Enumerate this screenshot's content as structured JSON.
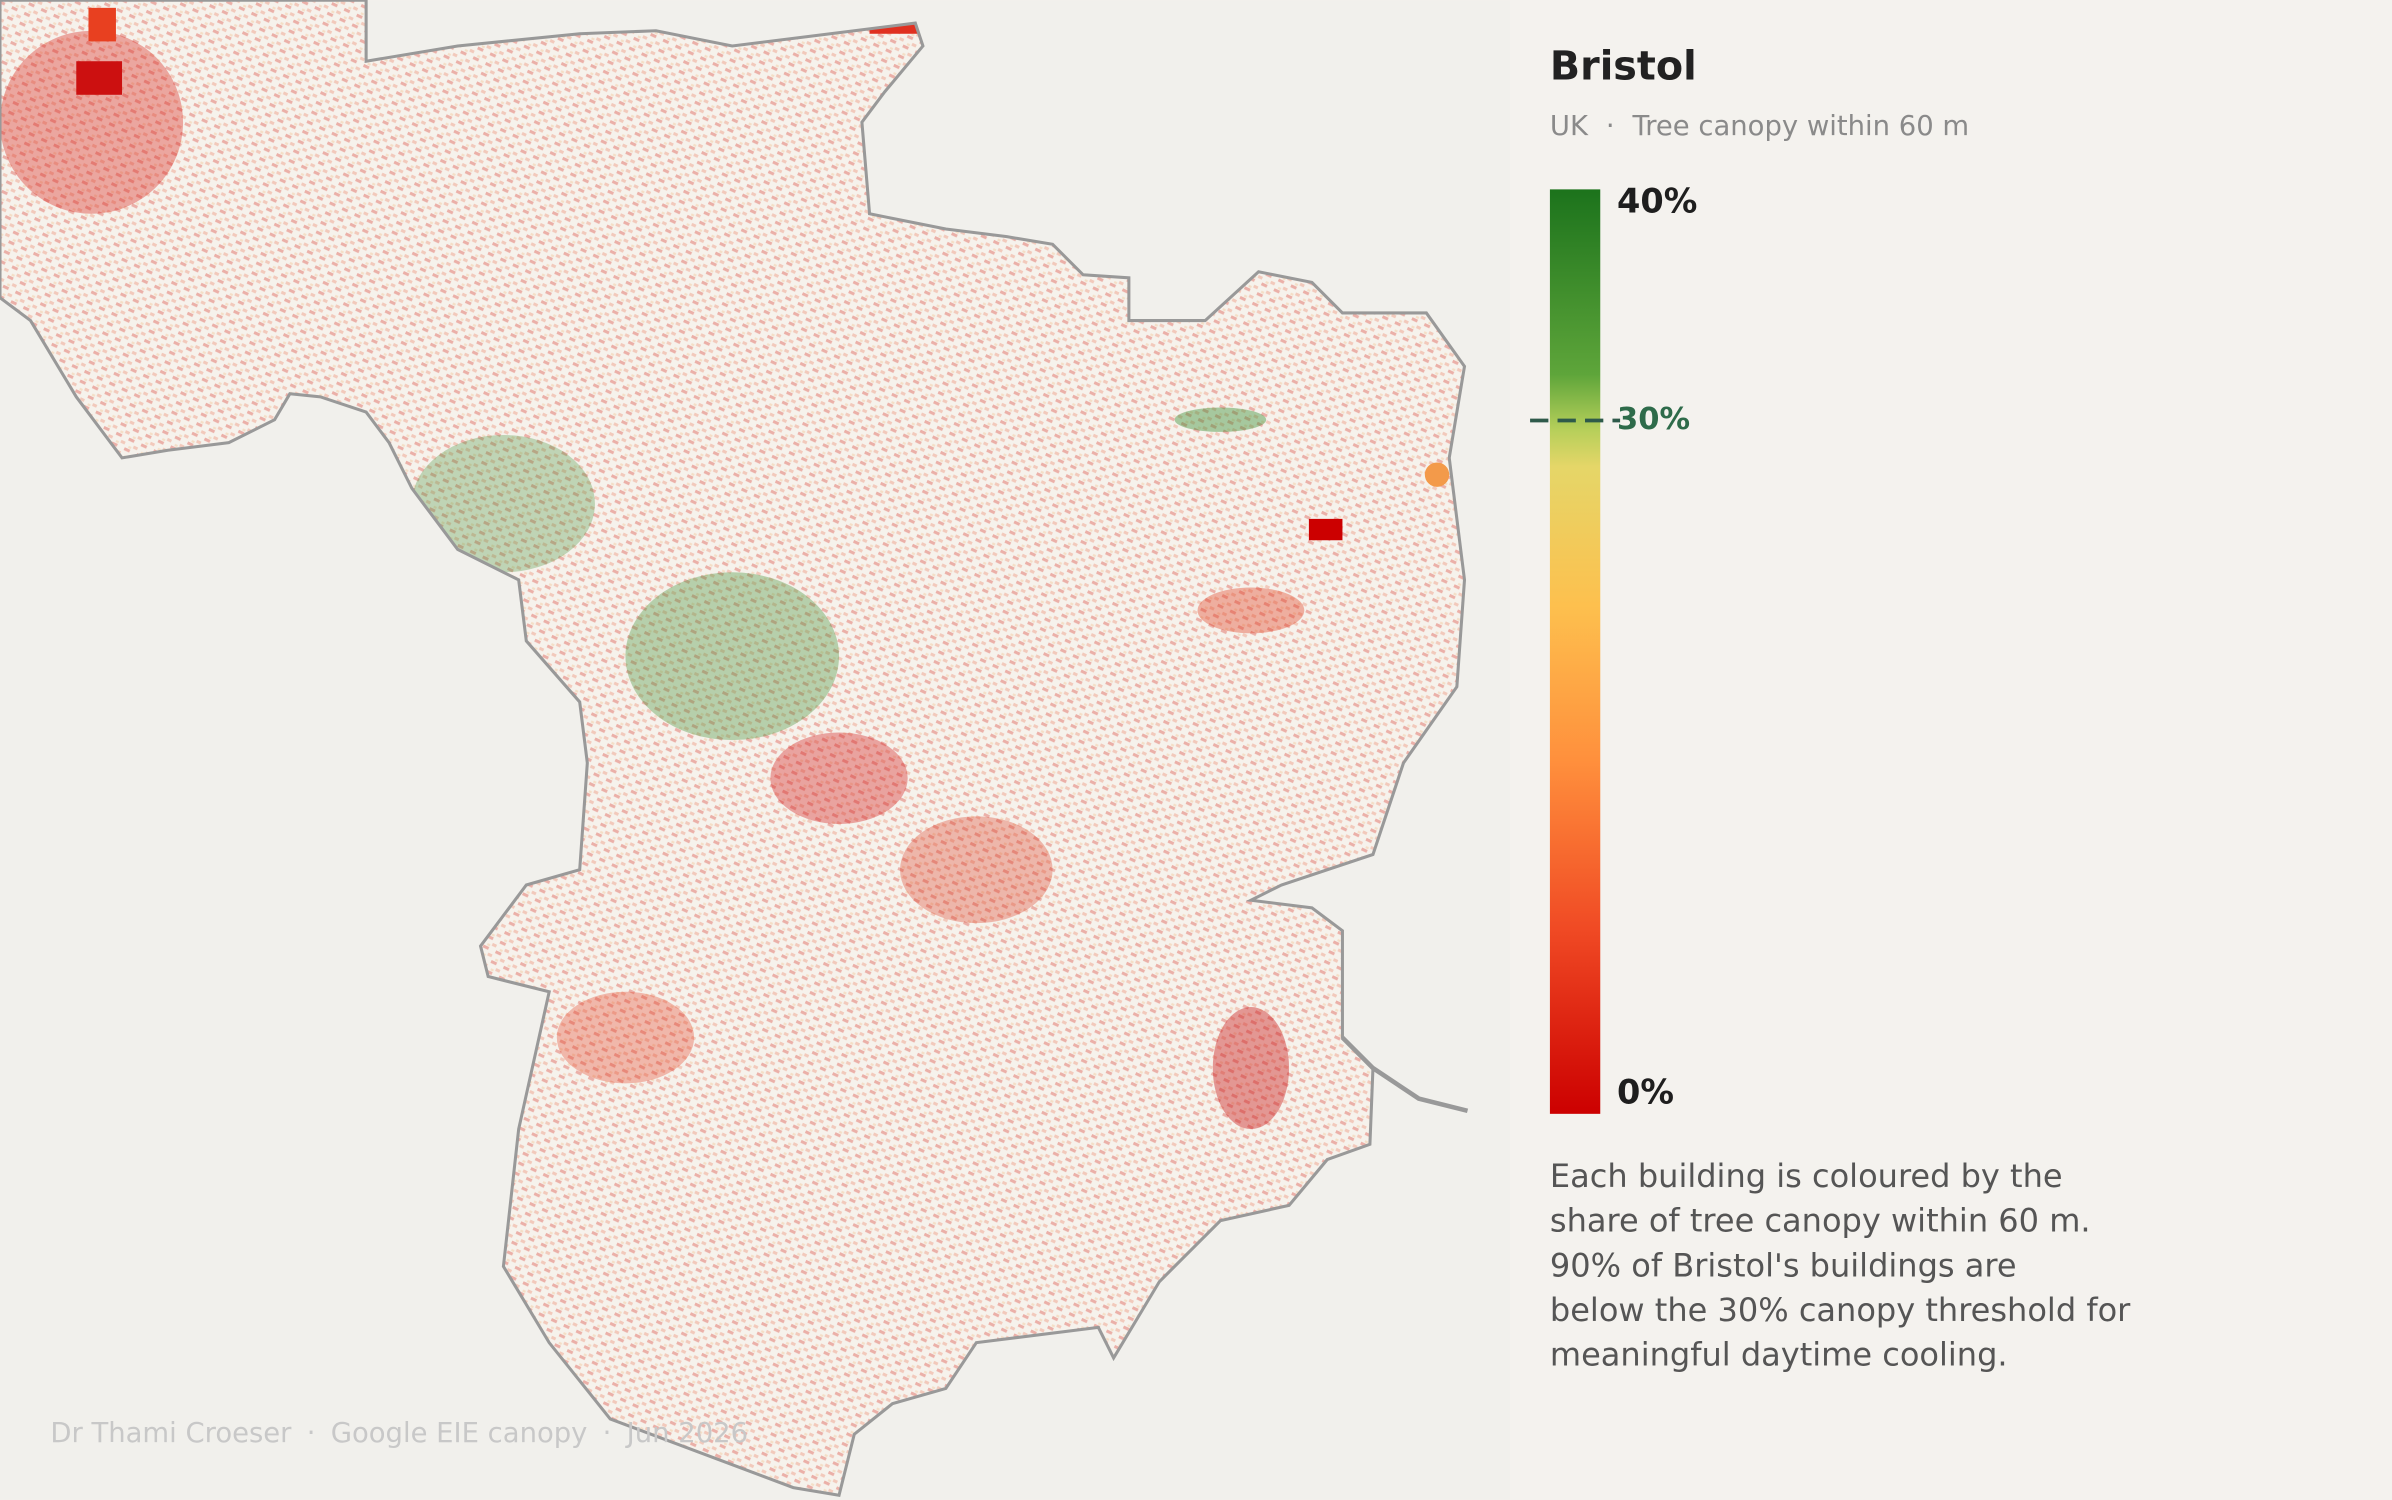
{
  "title": "Bristol",
  "subtitle": {
    "country": "UK",
    "separator": "·",
    "metric": "Tree canopy within 60 m"
  },
  "legend": {
    "range": [
      0,
      40
    ],
    "ticks": [
      {
        "value": 40,
        "label": "40%"
      },
      {
        "value": 30,
        "label": "30%"
      },
      {
        "value": 0,
        "label": "0%"
      }
    ],
    "threshold": 30
  },
  "description": [
    "Each building is coloured by the",
    "share of tree canopy within 60 m.",
    "90% of Bristol's buildings are",
    "below the 30% canopy threshold for",
    "meaningful daytime cooling."
  ],
  "credit": [
    "Dr Thami Croeser",
    "·",
    "Google EIE canopy",
    "·",
    "Jun 2026"
  ]
}
